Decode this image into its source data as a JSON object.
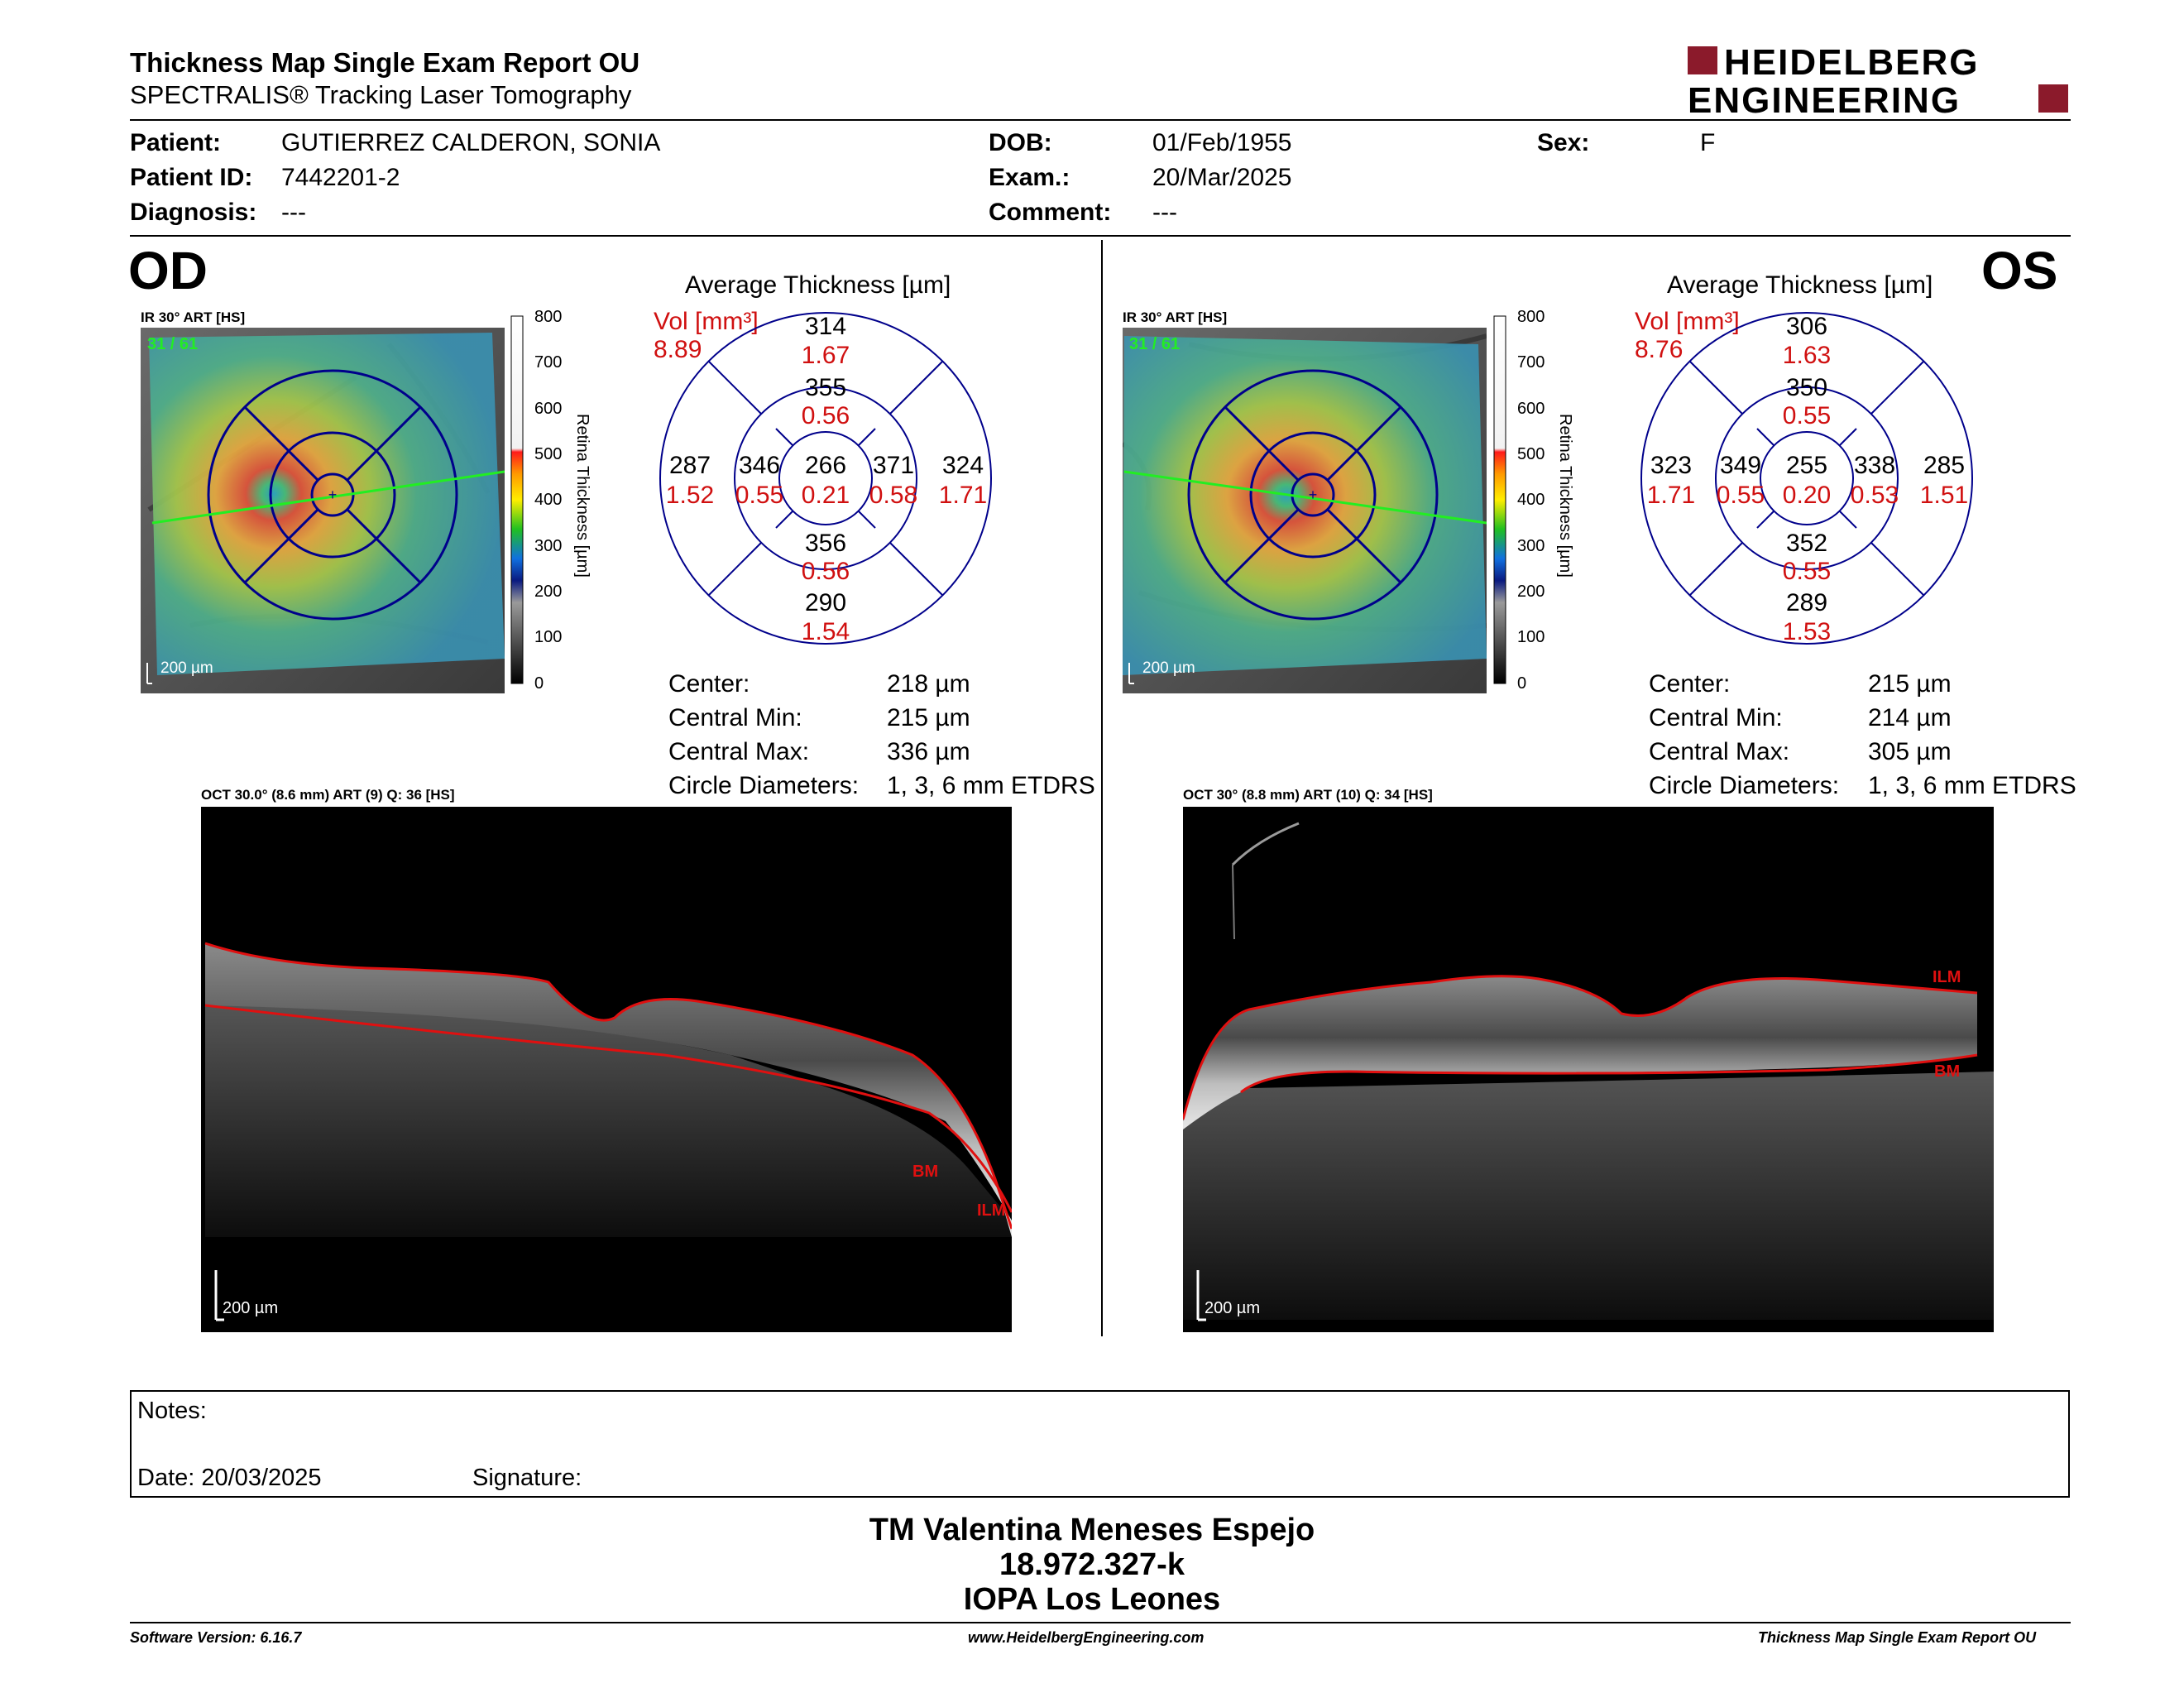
{
  "header": {
    "title": "Thickness Map Single Exam Report OU",
    "subtitle": "SPECTRALIS® Tracking Laser Tomography",
    "logo_line1": "HEIDELBERG",
    "logo_line2": "ENGINEERING",
    "brand_color": "#8b1a2b"
  },
  "patient": {
    "patient_label": "Patient:",
    "patient_value": "GUTIERREZ CALDERON, SONIA",
    "id_label": "Patient ID:",
    "id_value": "7442201-2",
    "diagnosis_label": "Diagnosis:",
    "diagnosis_value": "---",
    "dob_label": "DOB:",
    "dob_value": "01/Feb/1955",
    "exam_label": "Exam.:",
    "exam_value": "20/Mar/2025",
    "comment_label": "Comment:",
    "comment_value": "---",
    "sex_label": "Sex:",
    "sex_value": "F"
  },
  "scale": {
    "ticks": [
      "800",
      "700",
      "600",
      "500",
      "400",
      "300",
      "200",
      "100",
      "0"
    ],
    "axis_label": "Retina Thickness [µm]"
  },
  "od": {
    "eye": "OD",
    "ir_caption": "IR 30° ART [HS]",
    "ir_count": "31 / 61",
    "ir_scalebar": "200 µm",
    "avg_title": "Average Thickness [µm]",
    "vol_label": "Vol [mm³]",
    "vol_value": "8.89",
    "grid": {
      "center": {
        "t": "266",
        "v": "0.21"
      },
      "inner_sup": {
        "t": "355",
        "v": "0.56"
      },
      "inner_inf": {
        "t": "356",
        "v": "0.56"
      },
      "inner_left": {
        "t": "346",
        "v": "0.55"
      },
      "inner_right": {
        "t": "371",
        "v": "0.58"
      },
      "outer_sup": {
        "t": "314",
        "v": "1.67"
      },
      "outer_inf": {
        "t": "290",
        "v": "1.54"
      },
      "outer_left": {
        "t": "287",
        "v": "1.52"
      },
      "outer_right": {
        "t": "324",
        "v": "1.71"
      }
    },
    "center_label": "Center:",
    "center_value": "218 µm",
    "cmin_label": "Central Min:",
    "cmin_value": "215 µm",
    "cmax_label": "Central Max:",
    "cmax_value": "336 µm",
    "circ_label": "Circle Diameters:",
    "circ_value": "1, 3, 6 mm ETDRS",
    "oct_caption": "OCT 30.0° (8.6 mm) ART (9) Q: 36 [HS]",
    "oct_scalebar": "200 µm",
    "ilm": "ILM",
    "bm": "BM"
  },
  "os": {
    "eye": "OS",
    "ir_caption": "IR 30° ART [HS]",
    "ir_count": "31 / 61",
    "ir_scalebar": "200 µm",
    "avg_title": "Average Thickness [µm]",
    "vol_label": "Vol [mm³]",
    "vol_value": "8.76",
    "grid": {
      "center": {
        "t": "255",
        "v": "0.20"
      },
      "inner_sup": {
        "t": "350",
        "v": "0.55"
      },
      "inner_inf": {
        "t": "352",
        "v": "0.55"
      },
      "inner_left": {
        "t": "349",
        "v": "0.55"
      },
      "inner_right": {
        "t": "338",
        "v": "0.53"
      },
      "outer_sup": {
        "t": "306",
        "v": "1.63"
      },
      "outer_inf": {
        "t": "289",
        "v": "1.53"
      },
      "outer_left": {
        "t": "323",
        "v": "1.71"
      },
      "outer_right": {
        "t": "285",
        "v": "1.51"
      }
    },
    "center_label": "Center:",
    "center_value": "215 µm",
    "cmin_label": "Central Min:",
    "cmin_value": "214 µm",
    "cmax_label": "Central Max:",
    "cmax_value": "305 µm",
    "circ_label": "Circle Diameters:",
    "circ_value": "1, 3, 6 mm ETDRS",
    "oct_caption": "OCT 30° (8.8 mm) ART (10) Q: 34 [HS]",
    "oct_scalebar": "200 µm",
    "ilm": "ILM",
    "bm": "BM"
  },
  "notes": {
    "notes_label": "Notes:",
    "date_label": "Date: 20/03/2025",
    "signature_label": "Signature:"
  },
  "signature_block": {
    "line1": "TM Valentina Meneses Espejo",
    "line2": "18.972.327-k",
    "line3": "IOPA Los Leones"
  },
  "footer": {
    "left": "Software Version: 6.16.7",
    "center": "www.HeidelbergEngineering.com",
    "right": "Thickness Map Single Exam Report OU"
  }
}
